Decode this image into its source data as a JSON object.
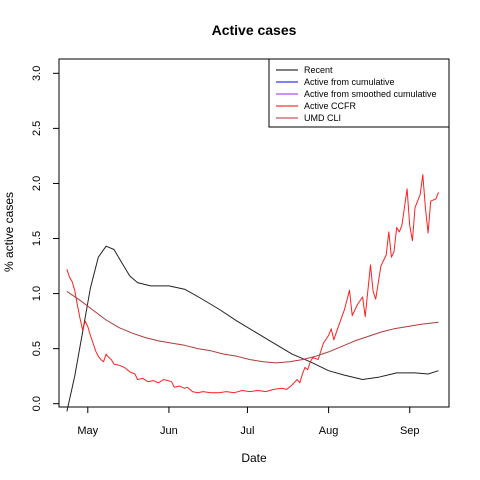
{
  "chart_data": {
    "type": "line",
    "title": "Active cases",
    "xlabel": "Date",
    "ylabel": "% active cases",
    "x_axis": {
      "type": "date",
      "range": [
        "2020-04-20",
        "2020-09-16"
      ],
      "ticks": [
        {
          "date": "2020-05-01",
          "label": "May"
        },
        {
          "date": "2020-06-01",
          "label": "Jun"
        },
        {
          "date": "2020-07-01",
          "label": "Jul"
        },
        {
          "date": "2020-08-01",
          "label": "Aug"
        },
        {
          "date": "2020-09-01",
          "label": "Sep"
        }
      ]
    },
    "y_axis": {
      "range": [
        -0.03,
        3.13
      ],
      "ticks": [
        0.0,
        0.5,
        1.0,
        1.5,
        2.0,
        2.5,
        3.0
      ],
      "tick_labels": [
        "0.0",
        "0.5",
        "1.0",
        "1.5",
        "2.0",
        "2.5",
        "3.0"
      ]
    },
    "grid": false,
    "legend": {
      "position": "top-right",
      "entries": [
        {
          "label": "Recent",
          "color": "#000000"
        },
        {
          "label": "Active from cumulative",
          "color": "#0000ff"
        },
        {
          "label": "Active from smoothed cumulative",
          "color": "#a020f0"
        },
        {
          "label": "Active CCFR",
          "color": "#ff0000"
        },
        {
          "label": "UMD CLI",
          "color": "#b03030"
        }
      ]
    },
    "series": [
      {
        "name": "Recent",
        "color": "#222222",
        "points": [
          [
            "2020-04-23",
            -0.07
          ],
          [
            "2020-04-26",
            0.25
          ],
          [
            "2020-04-29",
            0.65
          ],
          [
            "2020-05-02",
            1.05
          ],
          [
            "2020-05-05",
            1.33
          ],
          [
            "2020-05-08",
            1.43
          ],
          [
            "2020-05-11",
            1.4
          ],
          [
            "2020-05-14",
            1.28
          ],
          [
            "2020-05-17",
            1.16
          ],
          [
            "2020-05-20",
            1.1
          ],
          [
            "2020-05-25",
            1.07
          ],
          [
            "2020-06-01",
            1.07
          ],
          [
            "2020-06-07",
            1.04
          ],
          [
            "2020-06-13",
            0.96
          ],
          [
            "2020-06-20",
            0.86
          ],
          [
            "2020-06-27",
            0.75
          ],
          [
            "2020-07-04",
            0.65
          ],
          [
            "2020-07-11",
            0.55
          ],
          [
            "2020-07-18",
            0.45
          ],
          [
            "2020-07-25",
            0.38
          ],
          [
            "2020-08-01",
            0.3
          ],
          [
            "2020-08-07",
            0.26
          ],
          [
            "2020-08-14",
            0.22
          ],
          [
            "2020-08-20",
            0.24
          ],
          [
            "2020-08-27",
            0.28
          ],
          [
            "2020-09-03",
            0.28
          ],
          [
            "2020-09-08",
            0.27
          ],
          [
            "2020-09-12",
            0.3
          ]
        ]
      },
      {
        "name": "Active CCFR",
        "color": "#ff2020",
        "points": [
          [
            "2020-04-23",
            1.22
          ],
          [
            "2020-04-24",
            1.15
          ],
          [
            "2020-04-25",
            1.11
          ],
          [
            "2020-04-26",
            1.03
          ],
          [
            "2020-04-27",
            0.9
          ],
          [
            "2020-04-28",
            0.78
          ],
          [
            "2020-04-29",
            0.67
          ],
          [
            "2020-04-30",
            0.75
          ],
          [
            "2020-05-01",
            0.7
          ],
          [
            "2020-05-02",
            0.62
          ],
          [
            "2020-05-03",
            0.55
          ],
          [
            "2020-05-04",
            0.48
          ],
          [
            "2020-05-05",
            0.43
          ],
          [
            "2020-05-06",
            0.4
          ],
          [
            "2020-05-07",
            0.38
          ],
          [
            "2020-05-08",
            0.45
          ],
          [
            "2020-05-09",
            0.42
          ],
          [
            "2020-05-10",
            0.4
          ],
          [
            "2020-05-11",
            0.36
          ],
          [
            "2020-05-13",
            0.35
          ],
          [
            "2020-05-15",
            0.33
          ],
          [
            "2020-05-17",
            0.29
          ],
          [
            "2020-05-19",
            0.27
          ],
          [
            "2020-05-20",
            0.22
          ],
          [
            "2020-05-22",
            0.23
          ],
          [
            "2020-05-24",
            0.2
          ],
          [
            "2020-05-26",
            0.21
          ],
          [
            "2020-05-28",
            0.19
          ],
          [
            "2020-05-30",
            0.22
          ],
          [
            "2020-06-02",
            0.2
          ],
          [
            "2020-06-03",
            0.15
          ],
          [
            "2020-06-05",
            0.16
          ],
          [
            "2020-06-07",
            0.14
          ],
          [
            "2020-06-08",
            0.15
          ],
          [
            "2020-06-10",
            0.11
          ],
          [
            "2020-06-12",
            0.1
          ],
          [
            "2020-06-14",
            0.11
          ],
          [
            "2020-06-17",
            0.1
          ],
          [
            "2020-06-20",
            0.1
          ],
          [
            "2020-06-23",
            0.11
          ],
          [
            "2020-06-26",
            0.1
          ],
          [
            "2020-06-29",
            0.12
          ],
          [
            "2020-07-02",
            0.11
          ],
          [
            "2020-07-05",
            0.12
          ],
          [
            "2020-07-08",
            0.11
          ],
          [
            "2020-07-11",
            0.13
          ],
          [
            "2020-07-14",
            0.14
          ],
          [
            "2020-07-16",
            0.13
          ],
          [
            "2020-07-18",
            0.17
          ],
          [
            "2020-07-20",
            0.22
          ],
          [
            "2020-07-21",
            0.19
          ],
          [
            "2020-07-22",
            0.27
          ],
          [
            "2020-07-23",
            0.33
          ],
          [
            "2020-07-24",
            0.31
          ],
          [
            "2020-07-25",
            0.38
          ],
          [
            "2020-07-26",
            0.42
          ],
          [
            "2020-07-28",
            0.4
          ],
          [
            "2020-07-30",
            0.55
          ],
          [
            "2020-08-01",
            0.62
          ],
          [
            "2020-08-02",
            0.68
          ],
          [
            "2020-08-03",
            0.58
          ],
          [
            "2020-08-05",
            0.72
          ],
          [
            "2020-08-07",
            0.85
          ],
          [
            "2020-08-09",
            1.03
          ],
          [
            "2020-08-10",
            0.8
          ],
          [
            "2020-08-12",
            0.9
          ],
          [
            "2020-08-14",
            0.97
          ],
          [
            "2020-08-15",
            0.79
          ],
          [
            "2020-08-17",
            1.26
          ],
          [
            "2020-08-18",
            1.02
          ],
          [
            "2020-08-19",
            0.95
          ],
          [
            "2020-08-21",
            1.25
          ],
          [
            "2020-08-23",
            1.35
          ],
          [
            "2020-08-24",
            1.56
          ],
          [
            "2020-08-25",
            1.33
          ],
          [
            "2020-08-26",
            1.38
          ],
          [
            "2020-08-27",
            1.6
          ],
          [
            "2020-08-28",
            1.56
          ],
          [
            "2020-08-29",
            1.62
          ],
          [
            "2020-08-31",
            1.95
          ],
          [
            "2020-09-01",
            1.62
          ],
          [
            "2020-09-02",
            1.48
          ],
          [
            "2020-09-03",
            1.78
          ],
          [
            "2020-09-04",
            1.84
          ],
          [
            "2020-09-05",
            1.9
          ],
          [
            "2020-09-06",
            2.08
          ],
          [
            "2020-09-07",
            1.78
          ],
          [
            "2020-09-08",
            1.55
          ],
          [
            "2020-09-09",
            1.84
          ],
          [
            "2020-09-11",
            1.86
          ],
          [
            "2020-09-12",
            1.92
          ]
        ]
      },
      {
        "name": "UMD CLI",
        "color": "#b03a3a",
        "points": [
          [
            "2020-04-23",
            1.02
          ],
          [
            "2020-04-28",
            0.94
          ],
          [
            "2020-05-03",
            0.85
          ],
          [
            "2020-05-08",
            0.76
          ],
          [
            "2020-05-13",
            0.69
          ],
          [
            "2020-05-18",
            0.64
          ],
          [
            "2020-05-23",
            0.6
          ],
          [
            "2020-05-28",
            0.57
          ],
          [
            "2020-06-02",
            0.55
          ],
          [
            "2020-06-07",
            0.53
          ],
          [
            "2020-06-12",
            0.5
          ],
          [
            "2020-06-17",
            0.48
          ],
          [
            "2020-06-22",
            0.45
          ],
          [
            "2020-06-27",
            0.43
          ],
          [
            "2020-07-02",
            0.4
          ],
          [
            "2020-07-07",
            0.38
          ],
          [
            "2020-07-12",
            0.37
          ],
          [
            "2020-07-17",
            0.38
          ],
          [
            "2020-07-22",
            0.4
          ],
          [
            "2020-07-27",
            0.43
          ],
          [
            "2020-08-01",
            0.47
          ],
          [
            "2020-08-06",
            0.52
          ],
          [
            "2020-08-11",
            0.57
          ],
          [
            "2020-08-16",
            0.61
          ],
          [
            "2020-08-21",
            0.65
          ],
          [
            "2020-08-26",
            0.68
          ],
          [
            "2020-08-31",
            0.7
          ],
          [
            "2020-09-05",
            0.72
          ],
          [
            "2020-09-12",
            0.74
          ]
        ]
      }
    ]
  }
}
